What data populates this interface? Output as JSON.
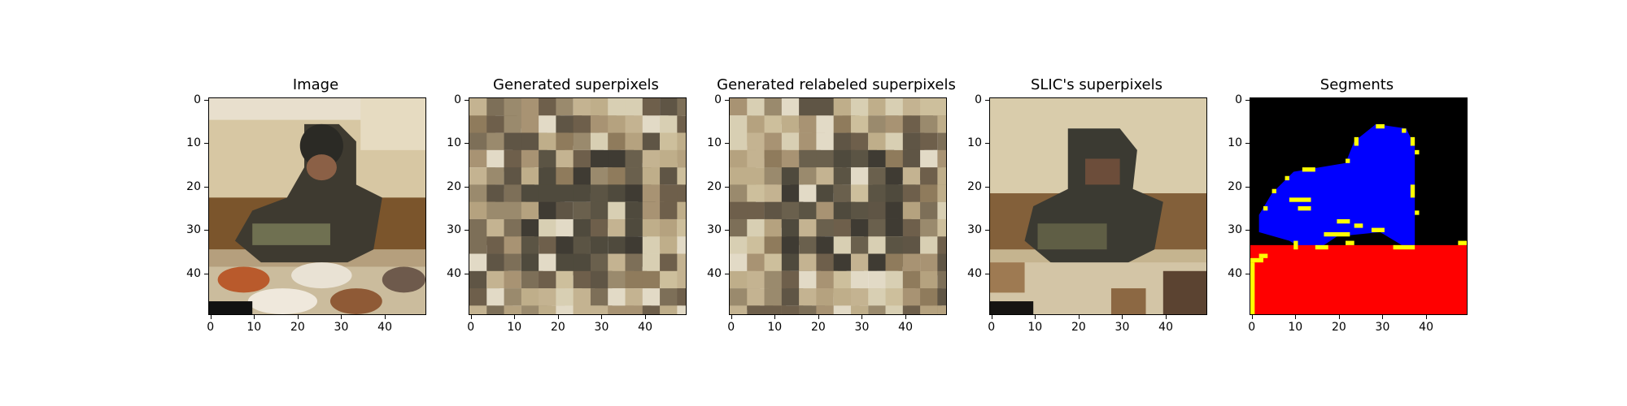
{
  "figure": {
    "panels": [
      {
        "title": "Image",
        "kind": "photo"
      },
      {
        "title": "Generated superpixels",
        "kind": "superpixels"
      },
      {
        "title": "Generated relabeled superpixels",
        "kind": "superpixels-relabeled"
      },
      {
        "title": "SLIC's superpixels",
        "kind": "slic"
      },
      {
        "title": "Segments",
        "kind": "segments"
      }
    ],
    "x_ticks": [
      "0",
      "10",
      "20",
      "30",
      "40"
    ],
    "y_ticks": [
      "0",
      "10",
      "20",
      "30",
      "40"
    ],
    "image_size": [
      50,
      50
    ],
    "segment_colors": {
      "background": "#000000",
      "person": "#0000ff",
      "table": "#ff0000",
      "boundary": "#ffff00"
    }
  }
}
